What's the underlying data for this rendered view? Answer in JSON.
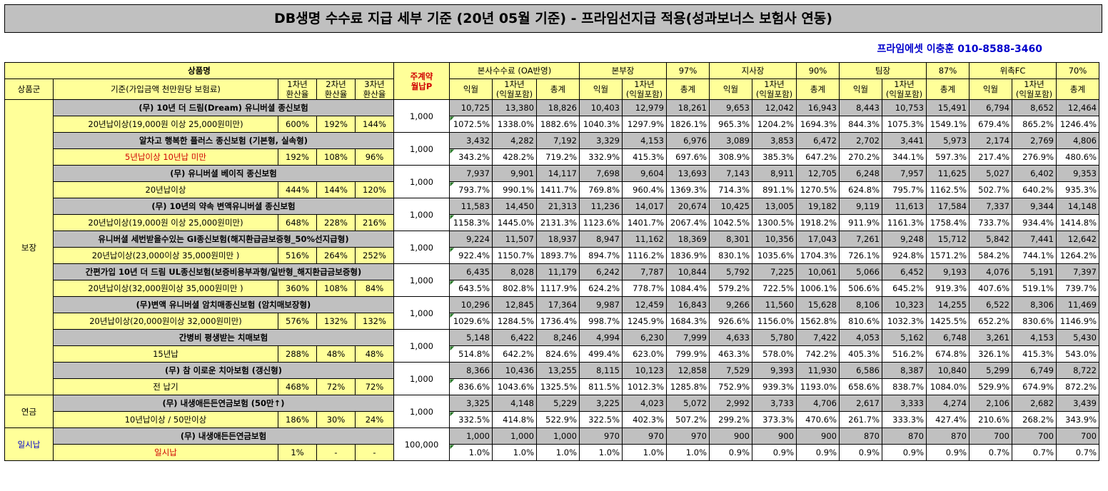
{
  "title": "DB생명 수수료 지급 세부 기준 (20년 05월 기준) - 프라임선지급 적용(성과보너스 보험사 연동)",
  "contact": "프라임에셋 이충훈 010-8588-3460",
  "header": {
    "product_name": "상품명",
    "product_group": "상품군",
    "criteria": "기준(가입금액 천만원당 보험료)",
    "rate1": "1차년\n환산율",
    "rate2": "2차년\n환산율",
    "rate3": "3차년\n환산율",
    "premium": "주계약\n월납P",
    "hq_group": "본사수수료 (OA반영)",
    "bonbu_group": "본부장",
    "bonbu_pct": "97%",
    "jisa_group": "지사장",
    "jisa_pct": "90%",
    "team_group": "팀장",
    "team_pct": "87%",
    "fc_group": "위촉FC",
    "fc_pct": "70%",
    "col_month": "익월",
    "col_year1": "1차년\n(익월포함)",
    "col_total": "총계"
  },
  "groups": [
    {
      "name": "보장",
      "rows": 9
    },
    {
      "name": "연금",
      "rows": 1
    },
    {
      "name": "일시납",
      "rows": 1
    }
  ],
  "products": [
    {
      "name": "(무) 10년 더 드림(Dream) 유니버셜 종신보험",
      "criteria": "20년납이상(19,000원 이상 25,000원미만)",
      "criteria_red": false,
      "r1": "600%",
      "r2": "192%",
      "r3": "144%",
      "premium": "1,000",
      "top": [
        "10,725",
        "13,380",
        "18,826",
        "10,403",
        "12,979",
        "18,261",
        "9,653",
        "12,042",
        "16,943",
        "8,443",
        "10,753",
        "15,491",
        "6,794",
        "8,652",
        "12,464"
      ],
      "bottom": [
        "1072.5%",
        "1338.0%",
        "1882.6%",
        "1040.3%",
        "1297.9%",
        "1826.1%",
        "965.3%",
        "1204.2%",
        "1694.3%",
        "844.3%",
        "1075.3%",
        "1549.1%",
        "679.4%",
        "865.2%",
        "1246.4%"
      ]
    },
    {
      "name": "알차고 행복한 플러스 종신보험 (기본형, 실속형)",
      "criteria": "5년납이상 10년납 미만",
      "criteria_red": true,
      "r1": "192%",
      "r2": "108%",
      "r3": "96%",
      "premium": "1,000",
      "top": [
        "3,432",
        "4,282",
        "7,192",
        "3,329",
        "4,153",
        "6,976",
        "3,089",
        "3,853",
        "6,472",
        "2,702",
        "3,441",
        "5,973",
        "2,174",
        "2,769",
        "4,806"
      ],
      "bottom": [
        "343.2%",
        "428.2%",
        "719.2%",
        "332.9%",
        "415.3%",
        "697.6%",
        "308.9%",
        "385.3%",
        "647.2%",
        "270.2%",
        "344.1%",
        "597.3%",
        "217.4%",
        "276.9%",
        "480.6%"
      ]
    },
    {
      "name": "(무) 유니버셜 베이직 종신보험",
      "criteria": "20년납이상",
      "criteria_red": false,
      "r1": "444%",
      "r2": "144%",
      "r3": "120%",
      "premium": "1,000",
      "top": [
        "7,937",
        "9,901",
        "14,117",
        "7,698",
        "9,604",
        "13,693",
        "7,143",
        "8,911",
        "12,705",
        "6,248",
        "7,957",
        "11,625",
        "5,027",
        "6,402",
        "9,353"
      ],
      "bottom": [
        "793.7%",
        "990.1%",
        "1411.7%",
        "769.8%",
        "960.4%",
        "1369.3%",
        "714.3%",
        "891.1%",
        "1270.5%",
        "624.8%",
        "795.7%",
        "1162.5%",
        "502.7%",
        "640.2%",
        "935.3%"
      ]
    },
    {
      "name": "(무) 10년의 약속 변액유니버셜 종신보험",
      "criteria": "20년납이상(19,000원 이상 25,000원미만)",
      "criteria_red": false,
      "r1": "648%",
      "r2": "228%",
      "r3": "216%",
      "premium": "1,000",
      "top": [
        "11,583",
        "14,450",
        "21,313",
        "11,236",
        "14,017",
        "20,674",
        "10,425",
        "13,005",
        "19,182",
        "9,119",
        "11,613",
        "17,584",
        "7,337",
        "9,344",
        "14,148"
      ],
      "bottom": [
        "1158.3%",
        "1445.0%",
        "2131.3%",
        "1123.6%",
        "1401.7%",
        "2067.4%",
        "1042.5%",
        "1300.5%",
        "1918.2%",
        "911.9%",
        "1161.3%",
        "1758.4%",
        "733.7%",
        "934.4%",
        "1414.8%"
      ]
    },
    {
      "name": "유니버셜 세번받을수있는 GI종신보험(해지환급금보증형_50%선지급형)",
      "criteria": "20년납이상(23,000이상 35,000원미만 )",
      "criteria_red": false,
      "r1": "516%",
      "r2": "264%",
      "r3": "252%",
      "premium": "1,000",
      "top": [
        "9,224",
        "11,507",
        "18,937",
        "8,947",
        "11,162",
        "18,369",
        "8,301",
        "10,356",
        "17,043",
        "7,261",
        "9,248",
        "15,712",
        "5,842",
        "7,441",
        "12,642"
      ],
      "bottom": [
        "922.4%",
        "1150.7%",
        "1893.7%",
        "894.7%",
        "1116.2%",
        "1836.9%",
        "830.1%",
        "1035.6%",
        "1704.3%",
        "726.1%",
        "924.8%",
        "1571.2%",
        "584.2%",
        "744.1%",
        "1264.2%"
      ]
    },
    {
      "name": "간편가입 10년 더 드림 UL종신보험(보증비용부과형/일반형_해지환급금보증형)",
      "criteria": "20년납이상(32,000원이상 35,000원미만 )",
      "criteria_red": false,
      "r1": "360%",
      "r2": "108%",
      "r3": "84%",
      "premium": "1,000",
      "top": [
        "6,435",
        "8,028",
        "11,179",
        "6,242",
        "7,787",
        "10,844",
        "5,792",
        "7,225",
        "10,061",
        "5,066",
        "6,452",
        "9,193",
        "4,076",
        "5,191",
        "7,397"
      ],
      "bottom": [
        "643.5%",
        "802.8%",
        "1117.9%",
        "624.2%",
        "778.7%",
        "1084.4%",
        "579.2%",
        "722.5%",
        "1006.1%",
        "506.6%",
        "645.2%",
        "919.3%",
        "407.6%",
        "519.1%",
        "739.7%"
      ]
    },
    {
      "name": "(무)변액 유니버셜 암치매종신보험 (암치매보장형)",
      "criteria": "20년납이상(20,000원이상 32,000원미만)",
      "criteria_red": false,
      "r1": "576%",
      "r2": "132%",
      "r3": "132%",
      "premium": "1,000",
      "top": [
        "10,296",
        "12,845",
        "17,364",
        "9,987",
        "12,459",
        "16,843",
        "9,266",
        "11,560",
        "15,628",
        "8,106",
        "10,323",
        "14,255",
        "6,522",
        "8,306",
        "11,469"
      ],
      "bottom": [
        "1029.6%",
        "1284.5%",
        "1736.4%",
        "998.7%",
        "1245.9%",
        "1684.3%",
        "926.6%",
        "1156.0%",
        "1562.8%",
        "810.6%",
        "1032.3%",
        "1425.5%",
        "652.2%",
        "830.6%",
        "1146.9%"
      ]
    },
    {
      "name": "간병비 평생받는 치매보험",
      "criteria": "15년납",
      "criteria_red": false,
      "r1": "288%",
      "r2": "48%",
      "r3": "48%",
      "premium": "1,000",
      "top": [
        "5,148",
        "6,422",
        "8,246",
        "4,994",
        "6,230",
        "7,999",
        "4,633",
        "5,780",
        "7,422",
        "4,053",
        "5,162",
        "6,748",
        "3,261",
        "4,153",
        "5,430"
      ],
      "bottom": [
        "514.8%",
        "642.2%",
        "824.6%",
        "499.4%",
        "623.0%",
        "799.9%",
        "463.3%",
        "578.0%",
        "742.2%",
        "405.3%",
        "516.2%",
        "674.8%",
        "326.1%",
        "415.3%",
        "543.0%"
      ]
    },
    {
      "name": "(무) 참 이로운 치아보험 (갱신형)",
      "criteria": "전 납기",
      "criteria_red": false,
      "r1": "468%",
      "r2": "72%",
      "r3": "72%",
      "premium": "1,000",
      "top": [
        "8,366",
        "10,436",
        "13,255",
        "8,115",
        "10,123",
        "12,858",
        "7,529",
        "9,393",
        "11,930",
        "6,586",
        "8,387",
        "10,840",
        "5,299",
        "6,749",
        "8,722"
      ],
      "bottom": [
        "836.6%",
        "1043.6%",
        "1325.5%",
        "811.5%",
        "1012.3%",
        "1285.8%",
        "752.9%",
        "939.3%",
        "1193.0%",
        "658.6%",
        "838.7%",
        "1084.0%",
        "529.9%",
        "674.9%",
        "872.2%"
      ]
    },
    {
      "name": "(무) 내생애든든연금보험 (50만↑)",
      "criteria": "10년납이상 / 50만이상",
      "criteria_red": false,
      "r1": "186%",
      "r2": "30%",
      "r3": "24%",
      "premium": "1,000",
      "top": [
        "3,325",
        "4,148",
        "5,229",
        "3,225",
        "4,023",
        "5,072",
        "2,992",
        "3,733",
        "4,706",
        "2,617",
        "3,333",
        "4,274",
        "2,106",
        "2,682",
        "3,439"
      ],
      "bottom": [
        "332.5%",
        "414.8%",
        "522.9%",
        "322.5%",
        "402.3%",
        "507.2%",
        "299.2%",
        "373.3%",
        "470.6%",
        "261.7%",
        "333.3%",
        "427.4%",
        "210.6%",
        "268.2%",
        "343.9%"
      ]
    },
    {
      "name": "(무) 내생애든든연금보험",
      "criteria": "일시납",
      "criteria_red": true,
      "r1": "1%",
      "r2": "-",
      "r3": "-",
      "premium": "100,000",
      "top": [
        "1,000",
        "1,000",
        "1,000",
        "970",
        "970",
        "970",
        "900",
        "900",
        "900",
        "870",
        "870",
        "870",
        "700",
        "700",
        "700"
      ],
      "bottom": [
        "1.0%",
        "1.0%",
        "1.0%",
        "1.0%",
        "1.0%",
        "1.0%",
        "0.9%",
        "0.9%",
        "0.9%",
        "0.9%",
        "0.9%",
        "0.9%",
        "0.7%",
        "0.7%",
        "0.7%"
      ]
    }
  ]
}
